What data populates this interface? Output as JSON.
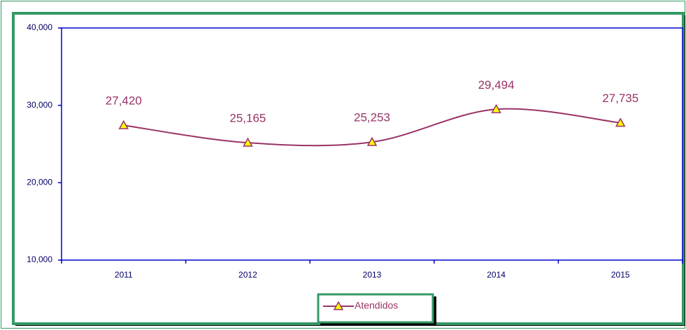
{
  "chart_data": {
    "type": "line",
    "categories": [
      "2011",
      "2012",
      "2013",
      "2014",
      "2015"
    ],
    "series": [
      {
        "name": "Atendidos",
        "color": "#993366",
        "marker_color": "#ffff00",
        "values": [
          27420,
          25165,
          25253,
          29494,
          27735
        ],
        "value_labels": [
          "27,420",
          "25,165",
          "25,253",
          "29,494",
          "27,735"
        ]
      }
    ],
    "ylim": [
      10000,
      40000
    ],
    "yticks": [
      {
        "value": 10000,
        "label": "10,000"
      },
      {
        "value": 20000,
        "label": "20,000"
      },
      {
        "value": 30000,
        "label": "30,000"
      },
      {
        "value": 40000,
        "label": "40,000"
      }
    ],
    "grid": false,
    "legend": "bottom",
    "smooth": true
  }
}
